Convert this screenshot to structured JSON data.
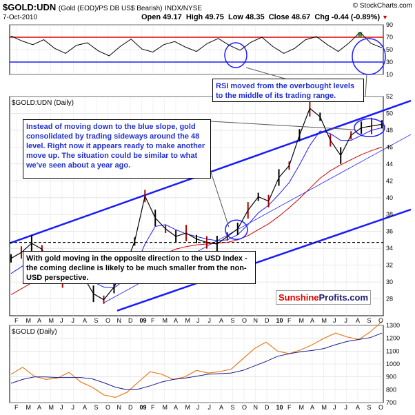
{
  "header": {
    "symbol": "$GOLD:UDN",
    "description": "(Gold (EOD)/PS DB US$ Bearish)",
    "exchange": "INDX/NYSE",
    "date": "7-Oct-2010",
    "open": "Open 49.17",
    "high": "High 49.75",
    "low": "Low 48.35",
    "close": "Close 48.67",
    "chg": "Chg -0.44 (-0.89%)",
    "copyright": "© StockCharts.com"
  },
  "colors": {
    "price_line": "#000000",
    "ma_blue": "#1a1aff",
    "ma_red": "#cc0000",
    "trend": "#1a1aff",
    "rsi_red": "#e00000",
    "gold_line": "#e87a1e",
    "highlight_green": "#4f8f4f",
    "annotation_text": "#1f2fd0"
  },
  "annotations": {
    "rsi_note": "RSI moved from the overbought levels to the middle of its trading range.",
    "main_note": "Instead of moving down to the blue slope, gold consolidated by trading sideways around the 48 level. Right now it appears ready to make another move up. The situation could be similar to what we've seen about a year ago.",
    "lower_note": "With gold moving in the opposite direction to the USD Index - the coming decline is likely to be much smaller from the non-USD perspective."
  },
  "watermark": {
    "part1": "Sunshine",
    "part2": "Profits.com"
  },
  "chart_data": [
    {
      "type": "line",
      "panel": "RSI",
      "ylim": [
        10,
        90
      ],
      "y_ticks": [
        10,
        30,
        50,
        70,
        90
      ],
      "reference_lines": [
        70,
        30
      ],
      "x_ticks": [
        "F",
        "M",
        "A",
        "M",
        "J",
        "J",
        "A",
        "S",
        "O",
        "N",
        "D",
        "09",
        "F",
        "M",
        "A",
        "M",
        "J",
        "J",
        "A",
        "S",
        "O",
        "N",
        "D",
        "10",
        "F",
        "M",
        "A",
        "M",
        "J",
        "J",
        "A",
        "S",
        "O"
      ],
      "values": [
        72,
        64,
        58,
        66,
        52,
        44,
        57,
        61,
        48,
        40,
        55,
        67,
        51,
        46,
        58,
        63,
        54,
        47,
        60,
        68,
        57,
        49,
        62,
        70,
        55,
        44,
        52,
        66,
        71,
        58,
        47,
        61,
        78,
        60,
        53
      ]
    },
    {
      "type": "line",
      "panel": "$GOLD:UDN (Daily)",
      "title": "$GOLD:UDN (Daily)",
      "ylim": [
        26,
        52
      ],
      "y_ticks": [
        28,
        30,
        32,
        34,
        36,
        38,
        40,
        42,
        44,
        46,
        48,
        50,
        52
      ],
      "x_ticks": [
        "F",
        "M",
        "A",
        "M",
        "J",
        "J",
        "A",
        "S",
        "O",
        "N",
        "D",
        "09",
        "F",
        "M",
        "A",
        "M",
        "J",
        "J",
        "A",
        "S",
        "O",
        "N",
        "D",
        "10",
        "F",
        "M",
        "A",
        "M",
        "J",
        "J",
        "A",
        "S",
        "O"
      ],
      "horizontal_level": 34.7,
      "price": [
        32.8,
        33.5,
        34.6,
        33.9,
        31.5,
        30.3,
        31.6,
        30.7,
        28.6,
        27.9,
        29.4,
        31.6,
        34.8,
        40.2,
        37.6,
        36.3,
        35.4,
        35.8,
        35.1,
        34.7,
        34.5,
        35.4,
        36.3,
        38.5,
        40.1,
        39.6,
        42.4,
        43.8,
        47.4,
        50.6,
        49.6,
        46.8,
        45.0,
        47.4,
        48.3,
        48.5,
        48.7
      ],
      "series": [
        {
          "name": "MA (blue)",
          "values": [
            31.0,
            31.8,
            32.5,
            33.0,
            32.6,
            31.8,
            31.2,
            30.8,
            30.0,
            29.4,
            29.3,
            30.2,
            31.6,
            34.5,
            36.6,
            36.8,
            36.2,
            35.7,
            35.4,
            35.1,
            34.9,
            35.0,
            35.6,
            36.8,
            38.2,
            39.1,
            40.4,
            41.8,
            43.9,
            46.2,
            47.9,
            47.6,
            46.8,
            46.8,
            47.4,
            48.0,
            48.3
          ]
        },
        {
          "name": "MA (red)",
          "values": [
            28.5,
            29.2,
            29.9,
            30.5,
            30.9,
            31.0,
            31.0,
            30.9,
            30.8,
            30.6,
            30.5,
            30.6,
            30.9,
            31.6,
            32.6,
            33.4,
            33.9,
            34.2,
            34.4,
            34.5,
            34.6,
            34.7,
            35.0,
            35.5,
            36.2,
            36.9,
            37.8,
            38.8,
            39.9,
            41.1,
            42.3,
            43.2,
            43.9,
            44.5,
            45.1,
            45.6,
            46.0
          ]
        }
      ]
    },
    {
      "type": "line",
      "panel": "$GOLD (Daily)",
      "title": "$GOLD (Daily)",
      "ylim": [
        700,
        1300
      ],
      "y_ticks": [
        700,
        800,
        900,
        1000,
        1100,
        1200,
        1300
      ],
      "x_ticks": [
        "F",
        "M",
        "A",
        "M",
        "J",
        "J",
        "A",
        "S",
        "O",
        "N",
        "D",
        "09",
        "F",
        "M",
        "A",
        "M",
        "J",
        "J",
        "A",
        "S",
        "O",
        "N",
        "D",
        "10",
        "F",
        "M",
        "A",
        "M",
        "J",
        "J",
        "A",
        "S",
        "O"
      ],
      "series": [
        {
          "name": "$GOLD",
          "values": [
            920,
            975,
            905,
            880,
            890,
            935,
            860,
            820,
            760,
            740,
            780,
            860,
            940,
            920,
            880,
            900,
            950,
            930,
            940,
            960,
            1040,
            1120,
            1170,
            1100,
            1080,
            1110,
            1150,
            1200,
            1240,
            1210,
            1190,
            1250,
            1330
          ]
        },
        {
          "name": "MA",
          "values": [
            850,
            880,
            900,
            900,
            895,
            895,
            895,
            885,
            855,
            820,
            800,
            805,
            830,
            860,
            880,
            890,
            905,
            920,
            925,
            930,
            950,
            985,
            1020,
            1060,
            1080,
            1095,
            1105,
            1120,
            1150,
            1175,
            1190,
            1205,
            1240
          ]
        }
      ]
    }
  ]
}
